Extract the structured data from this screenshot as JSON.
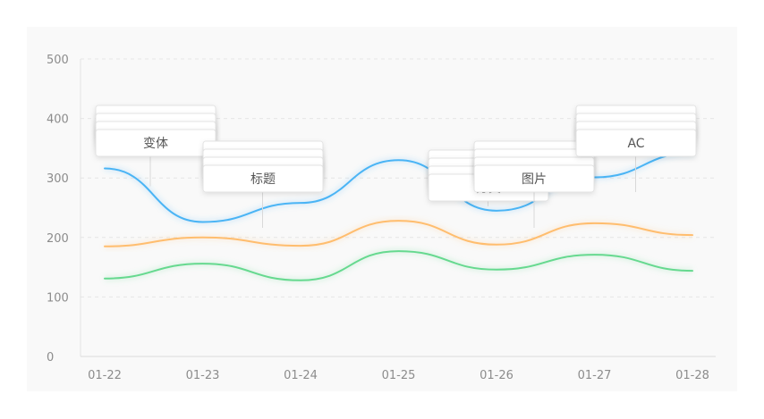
{
  "chart_data": {
    "type": "line",
    "categories": [
      "01-22",
      "01-23",
      "01-24",
      "01-25",
      "01-26",
      "01-27",
      "01-28"
    ],
    "ylim": [
      0,
      500
    ],
    "yticks": [
      0,
      100,
      200,
      300,
      400,
      500
    ],
    "grid": true,
    "smooth": true,
    "series": [
      {
        "color": "#4ab4f5",
        "values": [
          316,
          226,
          258,
          330,
          245,
          301,
          342
        ]
      },
      {
        "color": "#ffbd6e",
        "values": [
          185,
          200,
          186,
          228,
          188,
          224,
          204
        ]
      },
      {
        "color": "#66d98f",
        "values": [
          131,
          156,
          128,
          177,
          146,
          171,
          144
        ]
      }
    ],
    "annotations": [
      {
        "label": "变体",
        "category": "01-22"
      },
      {
        "label": "标题",
        "category": "01-23"
      },
      {
        "label": "分类",
        "category": "01-25"
      },
      {
        "label": "图片",
        "category": "01-26"
      },
      {
        "label": "AC",
        "category": "01-27"
      }
    ]
  }
}
